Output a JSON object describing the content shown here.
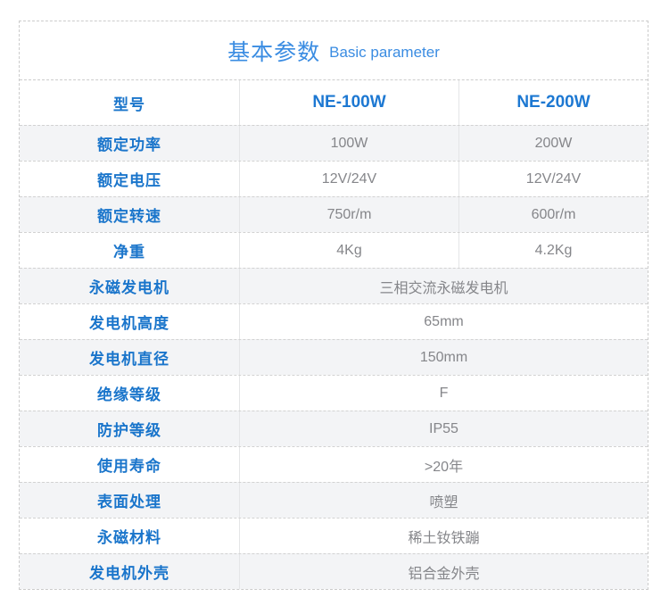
{
  "title": {
    "zh": "基本参数",
    "en": "Basic parameter"
  },
  "colors": {
    "title_blue": "#3a8ce2",
    "label_blue": "#1a75cb",
    "header_value_blue": "#1d78d2",
    "value_gray": "#85868a",
    "row_alt_bg": "#f3f4f6",
    "dashed_border": "#cccccc",
    "column_divider": "#e4e5e7"
  },
  "table": {
    "header": {
      "label": "型号",
      "model_1": "NE-100W",
      "model_2": "NE-200W"
    },
    "rows": [
      {
        "label": "额定功率",
        "value_1": "100W",
        "value_2": "200W"
      },
      {
        "label": "额定电压",
        "value_1": "12V/24V",
        "value_2": "12V/24V"
      },
      {
        "label": "额定转速",
        "value_1": "750r/m",
        "value_2": "600r/m"
      },
      {
        "label": "净重",
        "value_1": "4Kg",
        "value_2": "4.2Kg"
      },
      {
        "label": "永磁发电机",
        "value": "三相交流永磁发电机"
      },
      {
        "label": "发电机高度",
        "value": "65mm"
      },
      {
        "label": "发电机直径",
        "value": "150mm"
      },
      {
        "label": "绝缘等级",
        "value": "F"
      },
      {
        "label": "防护等级",
        "value": "IP55"
      },
      {
        "label": "使用寿命",
        "value": ">20年"
      },
      {
        "label": "表面处理",
        "value": "喷塑"
      },
      {
        "label": "永磁材料",
        "value": "稀土钕铁蹦"
      },
      {
        "label": "发电机外壳",
        "value": "铝合金外壳"
      }
    ]
  }
}
